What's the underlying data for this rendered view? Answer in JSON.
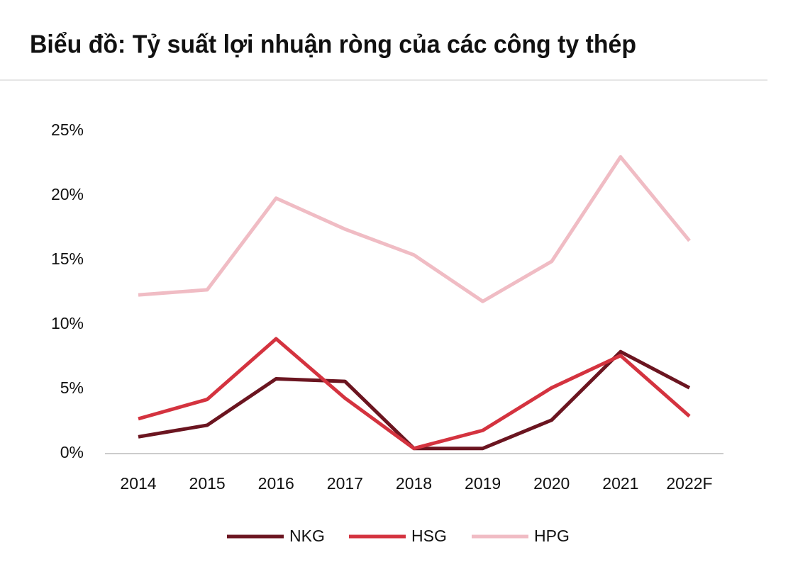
{
  "chart_data": {
    "type": "line",
    "title": "Biểu đồ: Tỷ suất lợi nhuận ròng của các công ty thép",
    "categories": [
      "2014",
      "2015",
      "2016",
      "2017",
      "2018",
      "2019",
      "2020",
      "2021",
      "2022F"
    ],
    "series": [
      {
        "name": "NKG",
        "color": "#6b1520",
        "values": [
          1.3,
          2.2,
          5.8,
          5.6,
          0.4,
          0.4,
          2.6,
          7.9,
          5.1
        ]
      },
      {
        "name": "HSG",
        "color": "#d4333f",
        "values": [
          2.7,
          4.2,
          8.9,
          4.3,
          0.4,
          1.8,
          5.1,
          7.6,
          2.9
        ]
      },
      {
        "name": "HPG",
        "color": "#f0bcc4",
        "values": [
          12.3,
          12.7,
          19.8,
          17.4,
          15.4,
          11.8,
          14.9,
          23.0,
          16.5
        ]
      }
    ],
    "ylim": [
      0,
      25
    ],
    "yticks": [
      {
        "value": 0,
        "label": "0%"
      },
      {
        "value": 5,
        "label": "5%"
      },
      {
        "value": 10,
        "label": "10%"
      },
      {
        "value": 15,
        "label": "15%"
      },
      {
        "value": 20,
        "label": "20%"
      },
      {
        "value": 25,
        "label": "25%"
      }
    ],
    "grid": false,
    "legend": "bottom"
  }
}
